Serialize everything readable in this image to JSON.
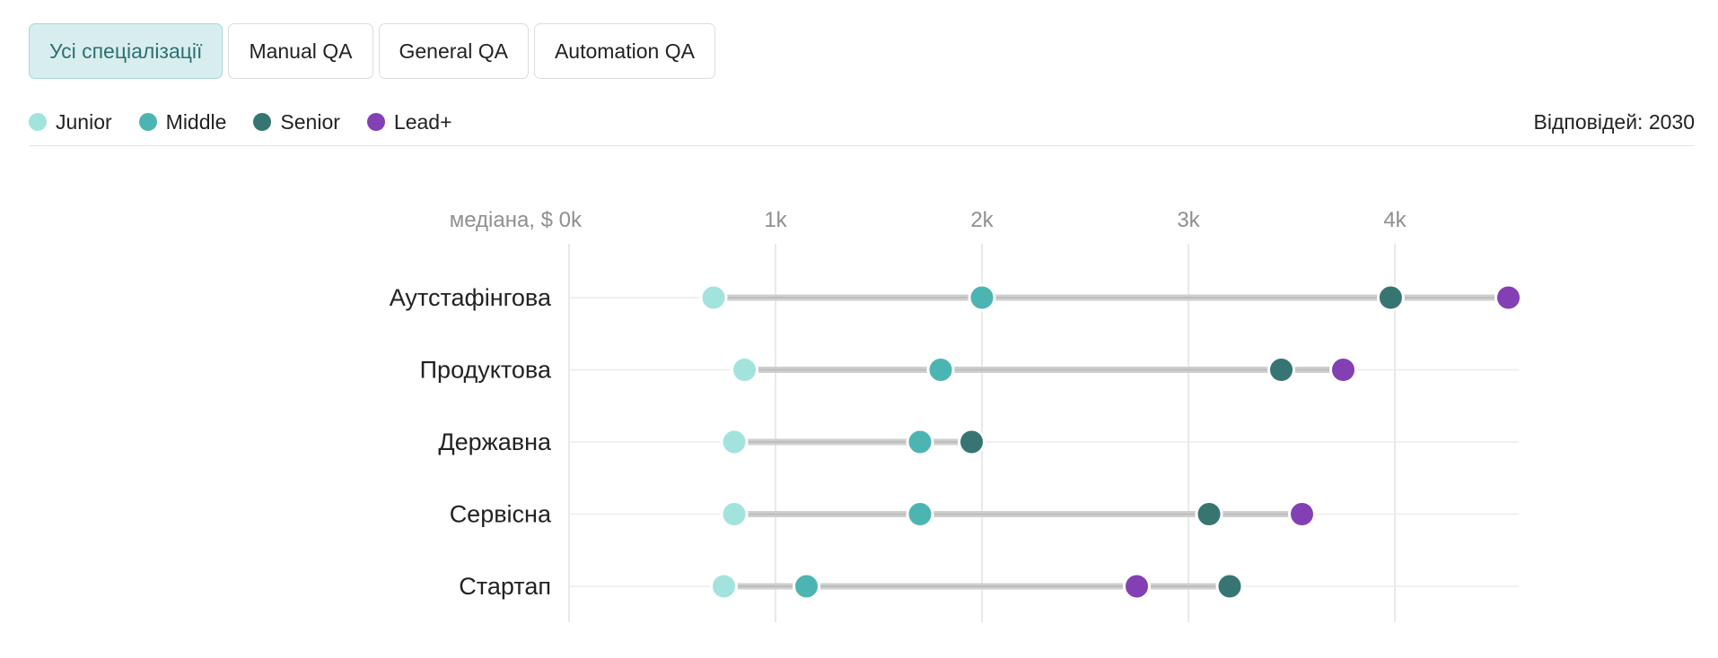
{
  "tabs": [
    {
      "label": "Усі спеціалізації",
      "active": true
    },
    {
      "label": "Manual QA",
      "active": false
    },
    {
      "label": "General QA",
      "active": false
    },
    {
      "label": "Automation QA",
      "active": false
    }
  ],
  "legend": [
    {
      "label": "Junior",
      "color": "#a3e3dd"
    },
    {
      "label": "Middle",
      "color": "#4db5b1"
    },
    {
      "label": "Senior",
      "color": "#377572"
    },
    {
      "label": "Lead+",
      "color": "#8340b4"
    }
  ],
  "responses_label": "Відповідей: 2030",
  "chart_data": {
    "type": "dot-range",
    "axis_label": "медіана, $",
    "xlim": [
      0,
      4.6
    ],
    "x_ticks": [
      0,
      1,
      2,
      3,
      4
    ],
    "x_tick_labels": [
      "0k",
      "1k",
      "2k",
      "3k",
      "4k"
    ],
    "grid": true,
    "categories": [
      "Аутстафінгова",
      "Продуктова",
      "Державна",
      "Сервісна",
      "Стартап"
    ],
    "series": [
      {
        "name": "Junior",
        "color": "#a3e3dd",
        "values": [
          0.7,
          0.85,
          0.8,
          0.8,
          0.75
        ]
      },
      {
        "name": "Middle",
        "color": "#4db5b1",
        "values": [
          2.0,
          1.8,
          1.7,
          1.7,
          1.15
        ]
      },
      {
        "name": "Senior",
        "color": "#377572",
        "values": [
          3.98,
          3.45,
          1.95,
          3.1,
          3.2
        ]
      },
      {
        "name": "Lead+",
        "color": "#8340b4",
        "values": [
          4.55,
          3.75,
          null,
          3.55,
          2.75
        ]
      }
    ]
  }
}
